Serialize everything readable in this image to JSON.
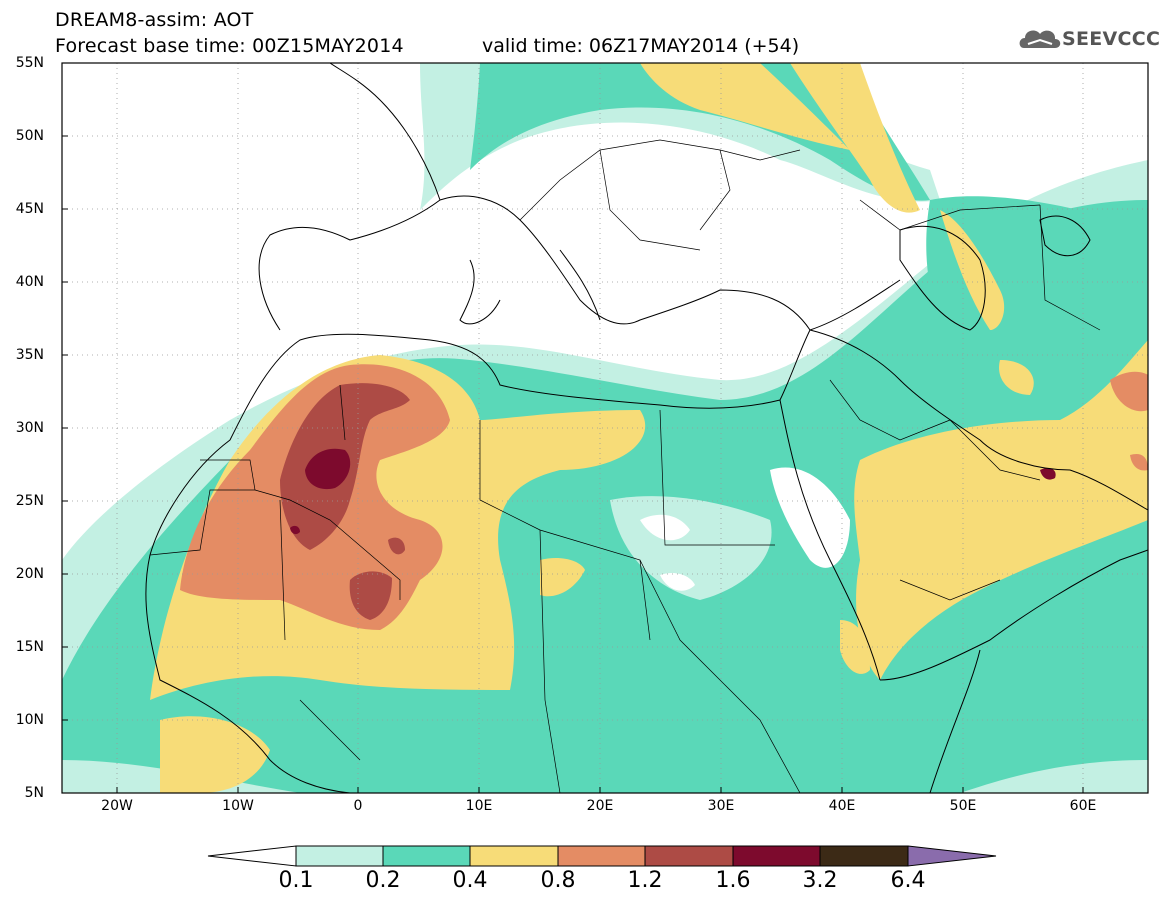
{
  "header": {
    "title_line1": "DREAM8-assim: AOT",
    "title_line2": "Forecast base time: 00Z15MAY2014",
    "valid_time": "valid time: 06Z17MAY2014 (+54)",
    "logo_text": "SEEVCCC"
  },
  "map": {
    "lat_labels": [
      "55N",
      "50N",
      "45N",
      "40N",
      "35N",
      "30N",
      "25N",
      "20N",
      "15N",
      "10N",
      "5N"
    ],
    "lon_labels": [
      "20W",
      "10W",
      "0",
      "10E",
      "20E",
      "30E",
      "40E",
      "50E",
      "60E"
    ],
    "lon_range": [
      -25,
      65
    ],
    "lat_range": [
      5,
      55
    ]
  },
  "colorbar": {
    "labels": [
      "0.1",
      "0.2",
      "0.4",
      "0.8",
      "1.2",
      "1.6",
      "3.2",
      "6.4"
    ],
    "colors": [
      "#ffffff",
      "#c3f0e3",
      "#5ad8b8",
      "#f7dc78",
      "#e48c64",
      "#ad4b45",
      "#7d0a2d",
      "#3c2a16",
      "#8a6cac"
    ]
  }
}
